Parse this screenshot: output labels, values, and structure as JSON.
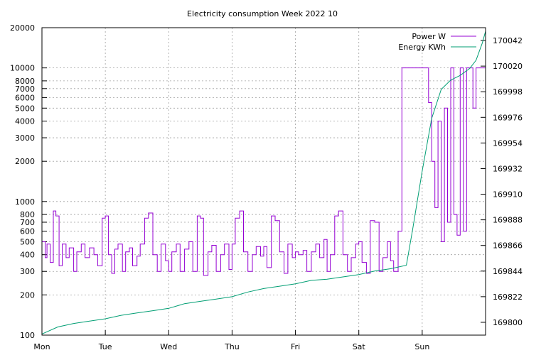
{
  "chart_data": {
    "type": "line",
    "title": "Electricity consumption Week 2022 10",
    "x_axis": {
      "unit": "day",
      "range": [
        0,
        7
      ],
      "tick_labels": [
        "Mon",
        "Tue",
        "Wed",
        "Thu",
        "Fri",
        "Sat",
        "Sun"
      ]
    },
    "y_axis_left": {
      "scale": "log",
      "range": [
        100,
        20000
      ],
      "tick_labels": [
        "100",
        "200",
        "300",
        "400",
        "500",
        "600",
        "700",
        "800",
        "1000",
        "2000",
        "3000",
        "4000",
        "5000",
        "6000",
        "7000",
        "8000",
        "10000",
        "20000"
      ],
      "tick_values": [
        100,
        200,
        300,
        400,
        500,
        600,
        700,
        800,
        1000,
        2000,
        3000,
        4000,
        5000,
        6000,
        7000,
        8000,
        10000,
        20000
      ]
    },
    "y_axis_right": {
      "scale": "linear",
      "range": [
        169789,
        170053
      ],
      "tick_labels": [
        "169800",
        "169822",
        "169844",
        "169866",
        "169888",
        "169910",
        "169932",
        "169954",
        "169976",
        "169998",
        "170020",
        "170042"
      ],
      "tick_values": [
        169800,
        169822,
        169844,
        169866,
        169888,
        169910,
        169932,
        169954,
        169976,
        169998,
        170020,
        170042
      ]
    },
    "grid": true,
    "legend_position": "top-right",
    "series": [
      {
        "name": "Power W",
        "axis": "left",
        "color": "#9400d3",
        "x": [
          0,
          0.05,
          0.08,
          0.13,
          0.18,
          0.22,
          0.27,
          0.32,
          0.38,
          0.43,
          0.5,
          0.55,
          0.62,
          0.68,
          0.75,
          0.82,
          0.88,
          0.95,
          1.0,
          1.05,
          1.1,
          1.15,
          1.2,
          1.27,
          1.32,
          1.38,
          1.43,
          1.5,
          1.55,
          1.62,
          1.68,
          1.75,
          1.82,
          1.88,
          1.95,
          2.0,
          2.05,
          2.12,
          2.18,
          2.25,
          2.32,
          2.38,
          2.45,
          2.5,
          2.55,
          2.62,
          2.68,
          2.75,
          2.82,
          2.88,
          2.95,
          3.0,
          3.05,
          3.12,
          3.18,
          3.25,
          3.32,
          3.38,
          3.45,
          3.5,
          3.55,
          3.62,
          3.68,
          3.75,
          3.82,
          3.88,
          3.95,
          4.0,
          4.05,
          4.12,
          4.18,
          4.25,
          4.32,
          4.38,
          4.45,
          4.5,
          4.55,
          4.62,
          4.68,
          4.75,
          4.82,
          4.88,
          4.95,
          5.0,
          5.05,
          5.12,
          5.18,
          5.25,
          5.32,
          5.38,
          5.45,
          5.5,
          5.55,
          5.62,
          5.68,
          5.73,
          5.78,
          5.8,
          5.85,
          5.9,
          5.95,
          6.0,
          6.05,
          6.1,
          6.15,
          6.2,
          6.25,
          6.3,
          6.35,
          6.4,
          6.45,
          6.5,
          6.55,
          6.6,
          6.65,
          6.7,
          6.75,
          6.8,
          6.85,
          6.9,
          6.95,
          7.0
        ],
        "values": [
          500,
          380,
          480,
          350,
          850,
          780,
          330,
          480,
          380,
          450,
          300,
          420,
          480,
          380,
          450,
          400,
          330,
          750,
          780,
          400,
          290,
          440,
          480,
          300,
          420,
          450,
          330,
          390,
          480,
          750,
          820,
          400,
          300,
          480,
          360,
          300,
          420,
          480,
          300,
          440,
          500,
          300,
          780,
          750,
          280,
          420,
          470,
          300,
          400,
          480,
          310,
          480,
          750,
          850,
          420,
          300,
          400,
          460,
          390,
          460,
          320,
          780,
          720,
          420,
          290,
          480,
          380,
          420,
          400,
          430,
          300,
          420,
          480,
          380,
          520,
          300,
          400,
          780,
          850,
          400,
          300,
          380,
          480,
          500,
          350,
          290,
          720,
          700,
          300,
          380,
          500,
          360,
          300,
          600,
          10000,
          10000,
          10000,
          10000,
          10000,
          10000,
          10000,
          10000,
          10000,
          5500,
          2000,
          900,
          4000,
          500,
          5000,
          700,
          10000,
          800,
          560,
          10000,
          600,
          10000,
          10000,
          5000,
          10000,
          10000,
          10000,
          10000
        ]
      },
      {
        "name": "Energy KWh",
        "axis": "right",
        "color": "#009e73",
        "x": [
          0,
          0.25,
          0.5,
          0.75,
          1.0,
          1.25,
          1.5,
          1.75,
          2.0,
          2.25,
          2.5,
          2.75,
          3.0,
          3.25,
          3.5,
          3.75,
          4.0,
          4.25,
          4.5,
          4.75,
          5.0,
          5.25,
          5.5,
          5.75,
          5.85,
          6.0,
          6.15,
          6.3,
          6.45,
          6.6,
          6.75,
          6.85,
          6.95,
          7.0
        ],
        "values": [
          169790,
          169796,
          169799,
          169801,
          169803,
          169806,
          169808,
          169810,
          169812,
          169816,
          169818,
          169820,
          169822,
          169826,
          169829,
          169831,
          169833,
          169836,
          169837,
          169839,
          169841,
          169844,
          169846,
          169849,
          169880,
          169930,
          169975,
          170000,
          170008,
          170012,
          170018,
          170025,
          170040,
          170050
        ]
      }
    ]
  }
}
